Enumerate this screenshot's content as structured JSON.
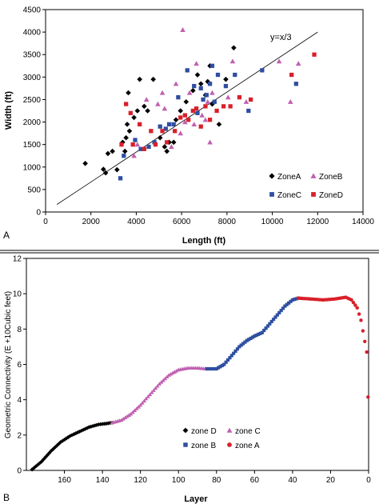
{
  "panels": {
    "a": {
      "label": "A"
    },
    "b": {
      "label": "B"
    }
  },
  "chart_data": [
    {
      "type": "scatter",
      "title": "",
      "xlabel": "Length (ft)",
      "ylabel": "Width (ft)",
      "xlim": [
        0,
        14000
      ],
      "ylim": [
        0,
        4500
      ],
      "xticks": [
        0,
        2000,
        4000,
        6000,
        8000,
        10000,
        12000,
        14000
      ],
      "yticks": [
        0,
        500,
        1000,
        1500,
        2000,
        2500,
        3000,
        3500,
        4000,
        4500
      ],
      "grid": false,
      "legend_position": "bottom-right",
      "annotations": [
        {
          "text": "y=x/3"
        }
      ],
      "reference_line": {
        "name": "y=x/3",
        "x": [
          500,
          12000
        ],
        "y": [
          167,
          4000
        ]
      },
      "series": [
        {
          "name": "ZoneA",
          "color": "#000000",
          "marker": "diamond",
          "points": [
            [
              1750,
              1080
            ],
            [
              2550,
              950
            ],
            [
              2650,
              870
            ],
            [
              2750,
              1300
            ],
            [
              2950,
              1350
            ],
            [
              3150,
              940
            ],
            [
              3400,
              1550
            ],
            [
              3500,
              1350
            ],
            [
              3550,
              1650
            ],
            [
              3600,
              1950
            ],
            [
              3650,
              2650
            ],
            [
              3700,
              1800
            ],
            [
              3900,
              2100
            ],
            [
              4050,
              2250
            ],
            [
              4150,
              2950
            ],
            [
              4350,
              2350
            ],
            [
              4500,
              2250
            ],
            [
              4750,
              2950
            ],
            [
              5050,
              1650
            ],
            [
              5250,
              1450
            ],
            [
              5350,
              1350
            ],
            [
              5450,
              1550
            ],
            [
              5650,
              1550
            ],
            [
              5750,
              2050
            ],
            [
              5950,
              2250
            ],
            [
              6200,
              2450
            ],
            [
              6500,
              2700
            ],
            [
              6700,
              3050
            ],
            [
              6850,
              2850
            ],
            [
              7050,
              2600
            ],
            [
              7150,
              2900
            ],
            [
              7250,
              3250
            ],
            [
              7350,
              2400
            ],
            [
              7650,
              1950
            ],
            [
              7950,
              2950
            ],
            [
              8300,
              3650
            ]
          ]
        },
        {
          "name": "ZoneB",
          "color": "#c060b0",
          "marker": "triangle",
          "points": [
            [
              3900,
              1250
            ],
            [
              4050,
              1500
            ],
            [
              4450,
              2500
            ],
            [
              4950,
              2400
            ],
            [
              5150,
              2650
            ],
            [
              5250,
              2300
            ],
            [
              5550,
              1450
            ],
            [
              5750,
              2850
            ],
            [
              5950,
              1750
            ],
            [
              6050,
              4050
            ],
            [
              6150,
              2000
            ],
            [
              6350,
              2650
            ],
            [
              6550,
              1950
            ],
            [
              6650,
              3300
            ],
            [
              6900,
              2150
            ],
            [
              7050,
              2050
            ],
            [
              7150,
              2450
            ],
            [
              7250,
              1550
            ],
            [
              7350,
              2650
            ],
            [
              8050,
              2550
            ],
            [
              8250,
              3350
            ],
            [
              8850,
              2450
            ],
            [
              10300,
              3350
            ],
            [
              10800,
              2450
            ],
            [
              11150,
              3300
            ]
          ]
        },
        {
          "name": "ZoneC",
          "color": "#2e4ea0",
          "marker": "square",
          "points": [
            [
              3300,
              750
            ],
            [
              3450,
              1250
            ],
            [
              3950,
              1600
            ],
            [
              4200,
              1400
            ],
            [
              4550,
              1450
            ],
            [
              4800,
              1550
            ],
            [
              5050,
              1900
            ],
            [
              5300,
              1850
            ],
            [
              5450,
              1950
            ],
            [
              5650,
              1950
            ],
            [
              5850,
              2550
            ],
            [
              6250,
              3150
            ],
            [
              6550,
              2800
            ],
            [
              6700,
              2200
            ],
            [
              6850,
              2750
            ],
            [
              6950,
              2500
            ],
            [
              7100,
              2600
            ],
            [
              7250,
              2850
            ],
            [
              7350,
              3250
            ],
            [
              7450,
              2450
            ],
            [
              7600,
              3050
            ],
            [
              7950,
              2800
            ],
            [
              8350,
              3050
            ],
            [
              8950,
              2250
            ],
            [
              9550,
              3150
            ],
            [
              11050,
              2850
            ]
          ]
        },
        {
          "name": "ZoneD",
          "color": "#d8202a",
          "marker": "square",
          "points": [
            [
              3350,
              1500
            ],
            [
              3550,
              2400
            ],
            [
              3750,
              2200
            ],
            [
              3850,
              1500
            ],
            [
              4150,
              1950
            ],
            [
              4350,
              1400
            ],
            [
              4650,
              1800
            ],
            [
              4850,
              1500
            ],
            [
              5150,
              1800
            ],
            [
              5350,
              1550
            ],
            [
              5700,
              1800
            ],
            [
              5950,
              2100
            ],
            [
              6150,
              2150
            ],
            [
              6300,
              2050
            ],
            [
              6500,
              2250
            ],
            [
              6650,
              2300
            ],
            [
              6850,
              1900
            ],
            [
              7050,
              2350
            ],
            [
              7250,
              2050
            ],
            [
              7550,
              2250
            ],
            [
              7850,
              2350
            ],
            [
              8150,
              2350
            ],
            [
              8550,
              2550
            ],
            [
              9050,
              2500
            ],
            [
              10850,
              3050
            ],
            [
              11850,
              3500
            ]
          ]
        }
      ]
    },
    {
      "type": "scatter",
      "title": "",
      "xlabel": "Layer",
      "ylabel": "Geometric Connectivity (E +10Cubic feet)",
      "x_reversed": true,
      "xlim": [
        180,
        0
      ],
      "ylim": [
        0,
        12
      ],
      "xticks": [
        160,
        140,
        120,
        100,
        80,
        60,
        40,
        20,
        0
      ],
      "yticks": [
        0,
        2,
        4,
        6,
        8,
        10,
        12
      ],
      "grid": false,
      "legend_position": "bottom-left",
      "series": [
        {
          "name": "zone D",
          "color": "#000000",
          "marker": "diamond",
          "knots": [
            [
              177,
              0.05
            ],
            [
              172,
              0.5
            ],
            [
              167,
              1.1
            ],
            [
              162,
              1.6
            ],
            [
              157,
              1.95
            ],
            [
              152,
              2.2
            ],
            [
              147,
              2.45
            ],
            [
              142,
              2.6
            ],
            [
              138,
              2.65
            ],
            [
              135,
              2.7
            ]
          ]
        },
        {
          "name": "zone C",
          "color": "#c060b0",
          "marker": "triangle",
          "knots": [
            [
              135,
              2.7
            ],
            [
              130,
              2.85
            ],
            [
              125,
              3.2
            ],
            [
              120,
              3.7
            ],
            [
              115,
              4.3
            ],
            [
              110,
              4.9
            ],
            [
              105,
              5.4
            ],
            [
              100,
              5.7
            ],
            [
              95,
              5.8
            ],
            [
              90,
              5.8
            ],
            [
              85,
              5.75
            ]
          ]
        },
        {
          "name": "zone B",
          "color": "#2e4ea0",
          "marker": "square",
          "knots": [
            [
              85,
              5.75
            ],
            [
              80,
              5.75
            ],
            [
              76,
              6.0
            ],
            [
              72,
              6.5
            ],
            [
              68,
              7.0
            ],
            [
              64,
              7.35
            ],
            [
              60,
              7.6
            ],
            [
              56,
              7.8
            ],
            [
              52,
              8.3
            ],
            [
              48,
              8.8
            ],
            [
              44,
              9.3
            ],
            [
              40,
              9.65
            ],
            [
              37,
              9.75
            ]
          ]
        },
        {
          "name": "zone A",
          "color": "#d8202a",
          "marker": "circle",
          "knots": [
            [
              37,
              9.75
            ],
            [
              30,
              9.7
            ],
            [
              24,
              9.65
            ],
            [
              18,
              9.7
            ],
            [
              12,
              9.8
            ],
            [
              9,
              9.65
            ],
            [
              6,
              9.2
            ],
            [
              4,
              8.5
            ],
            [
              2,
              7.3
            ],
            [
              1,
              6.7
            ],
            [
              0.3,
              4.15
            ]
          ]
        }
      ]
    }
  ]
}
